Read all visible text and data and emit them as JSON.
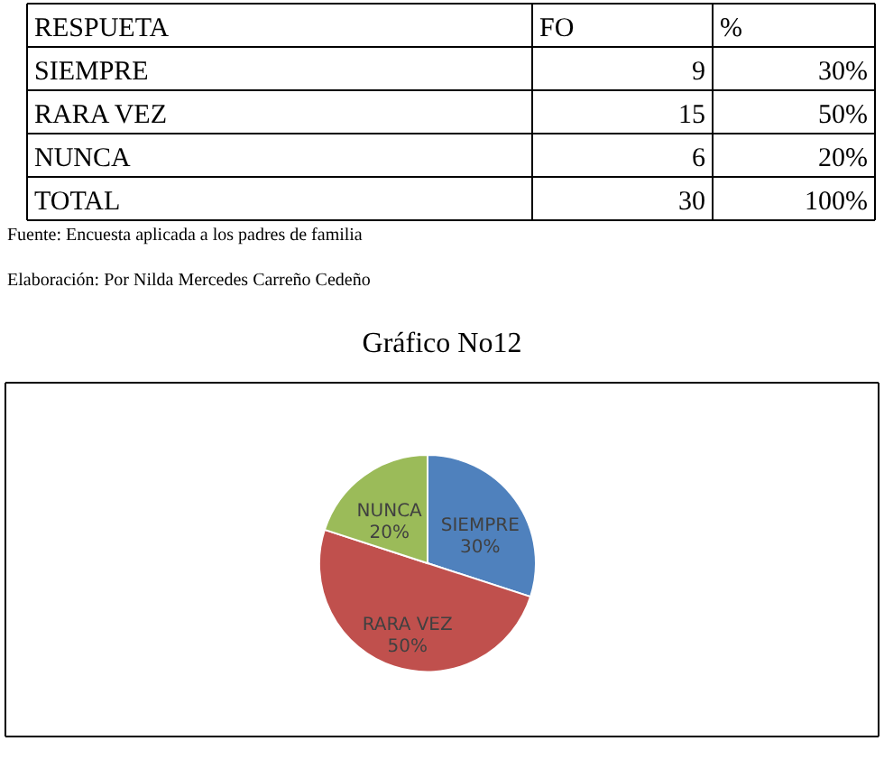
{
  "chart_data": {
    "type": "pie",
    "title": "Gráfico No12",
    "categories": [
      "SIEMPRE",
      "RARA VEZ",
      "NUNCA"
    ],
    "values": [
      30,
      50,
      20
    ],
    "colors": [
      "#4f81bd",
      "#c0504d",
      "#9bbb59"
    ],
    "value_labels": [
      "30%",
      "50%",
      "20%"
    ],
    "annotations": [
      "RESPUETA",
      "FO",
      "%",
      "SIEMPRE",
      "9",
      "30%",
      "RARA VEZ",
      "15",
      "50%",
      "NUNCA",
      "6",
      "20%",
      "TOTAL",
      "30",
      "100%",
      "Fuente: Encuesta aplicada a los padres de familia",
      "Elaboración: Por Nilda Mercedes Carreño Cedeño"
    ]
  }
}
